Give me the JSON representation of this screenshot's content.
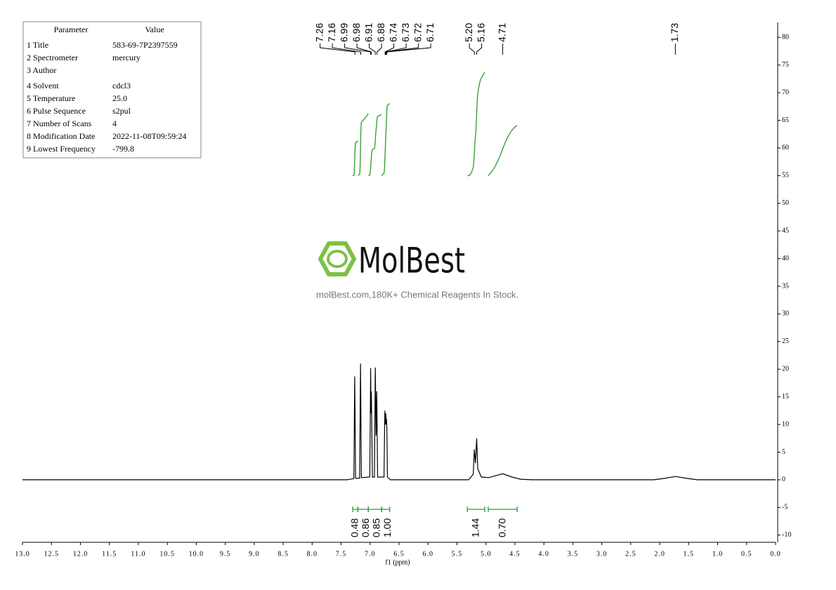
{
  "table": {
    "header": [
      "Parameter",
      "Value"
    ],
    "rows": [
      [
        "1 Title",
        "583-69-7P2397559"
      ],
      [
        "2 Spectrometer",
        "mercury"
      ],
      [
        "3 Author"
      ],
      [
        "4 Solvent",
        "cdcl3"
      ],
      [
        "5 Temperature",
        "25.0"
      ],
      [
        "6 Pulse Sequence",
        "s2pul"
      ],
      [
        "7 Number of Scans",
        "4"
      ],
      [
        "8 Modification Date",
        "2022-11-08T09:59:24"
      ],
      [
        "9 Lowest Frequency",
        "-799.8"
      ]
    ]
  },
  "watermark": {
    "brand": "MolBest",
    "tagline": "molBest.com,180K+ Chemical Reagents In Stock."
  },
  "chart_data": {
    "type": "nmr",
    "xlabel": "f1 (ppm)",
    "color": "#000000",
    "integral_color": "#2e9a2e",
    "xlim": [
      13.0,
      0.0
    ],
    "xticks": [
      {
        "value": 13,
        "label": "13.0"
      },
      12.5,
      {
        "value": 12,
        "label": "12.0"
      },
      11.5,
      {
        "value": 11,
        "label": "11.0"
      },
      10.5,
      {
        "value": 10,
        "label": "10.0"
      },
      9.5,
      {
        "value": 9,
        "label": "9.0"
      },
      8.5,
      {
        "value": 8,
        "label": "8.0"
      },
      7.5,
      {
        "value": 7,
        "label": "7.0"
      },
      6.5,
      {
        "value": 6,
        "label": "6.0"
      },
      5.5,
      {
        "value": 5,
        "label": "5.0"
      },
      4.5,
      {
        "value": 4,
        "label": "4.0"
      },
      3.5,
      {
        "value": 3,
        "label": "3.0"
      },
      2.5,
      {
        "value": 2,
        "label": "2.0"
      },
      1.5,
      {
        "value": 1,
        "label": "1.0"
      },
      0.5,
      {
        "value": 0,
        "label": "0.0"
      }
    ],
    "ylim": [
      -11.3,
      82.7
    ],
    "yticks": [
      -10,
      -5,
      0,
      5,
      10,
      15,
      20,
      25,
      30,
      35,
      40,
      45,
      50,
      55,
      60,
      65,
      70,
      75,
      80
    ],
    "x": [
      13.0,
      7.4,
      7.28,
      7.265,
      7.25,
      7.18,
      7.165,
      7.15,
      7.005,
      6.99,
      6.985,
      6.978,
      6.96,
      6.925,
      6.91,
      6.895,
      6.885,
      6.87,
      6.76,
      6.745,
      6.735,
      6.728,
      6.722,
      6.716,
      6.71,
      6.7,
      6.65,
      5.3,
      5.22,
      5.2,
      5.18,
      5.16,
      5.14,
      5.08,
      4.95,
      4.85,
      4.71,
      4.55,
      4.4,
      4.2,
      2.1,
      1.9,
      1.73,
      1.55,
      1.35,
      0.0
    ],
    "values": [
      0,
      0,
      0.2,
      18.7,
      0.3,
      0.3,
      21.0,
      0.4,
      0.5,
      20.2,
      12,
      16,
      0.5,
      0.5,
      20.3,
      8,
      16,
      0.5,
      0.5,
      12.5,
      10,
      12.0,
      10,
      11,
      9,
      0.5,
      0,
      0,
      1,
      5.5,
      3,
      7.5,
      2,
      0.5,
      0.4,
      0.7,
      1.1,
      0.5,
      0.1,
      0,
      0,
      0.3,
      0.6,
      0.3,
      0,
      0
    ],
    "peaks": [
      7.26,
      7.16,
      6.99,
      6.98,
      6.91,
      6.88,
      6.74,
      6.73,
      6.72,
      6.71,
      5.2,
      5.16,
      4.71,
      1.73
    ],
    "peak_labels": [
      "7.26",
      "7.16",
      "6.99",
      "6.98",
      "6.91",
      "6.88",
      "6.74",
      "6.73",
      "6.72",
      "6.71",
      "5.20",
      "5.16",
      "4.71",
      "1.73"
    ],
    "integrals": [
      {
        "range": [
          7.3,
          7.21
        ],
        "value": 0.48,
        "label": "0.48"
      },
      {
        "range": [
          7.21,
          7.03
        ],
        "value": 0.86,
        "label": "0.86"
      },
      {
        "range": [
          7.03,
          6.8
        ],
        "value": 0.85,
        "label": "0.85"
      },
      {
        "range": [
          6.8,
          6.66
        ],
        "value": 1.0,
        "label": "1.00"
      },
      {
        "range": [
          5.32,
          5.02
        ],
        "value": 1.44,
        "label": "1.44"
      },
      {
        "range": [
          4.96,
          4.46
        ],
        "value": 0.7,
        "label": "0.70"
      }
    ]
  }
}
